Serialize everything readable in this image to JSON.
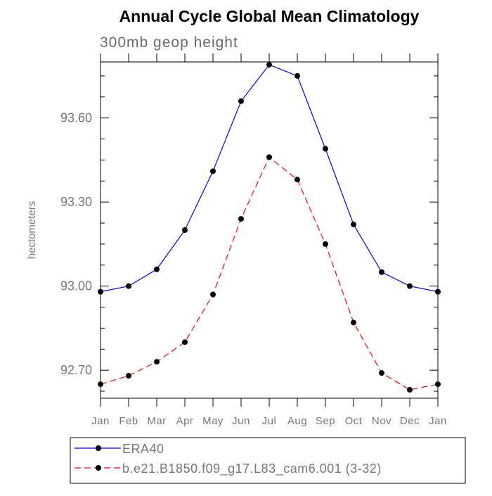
{
  "chart_data": {
    "type": "line",
    "title": "Annual Cycle Global Mean Climatology",
    "subtitle": "300mb geop height",
    "xlabel": "",
    "ylabel": "hectometers",
    "categories": [
      "Jan",
      "Feb",
      "Mar",
      "Apr",
      "May",
      "Jun",
      "Jul",
      "Aug",
      "Sep",
      "Oct",
      "Nov",
      "Dec",
      "Jan"
    ],
    "ylim": [
      92.6,
      93.8
    ],
    "yticks": [
      92.7,
      93.0,
      93.3,
      93.6
    ],
    "ytick_labels": [
      "92.70",
      "93.00",
      "93.30",
      "93.60"
    ],
    "series": [
      {
        "name": "ERA40",
        "color": "#0000ff",
        "dash": "solid",
        "values": [
          92.98,
          93.0,
          93.06,
          93.2,
          93.41,
          93.66,
          93.79,
          93.75,
          93.49,
          93.22,
          93.05,
          93.0,
          92.98
        ]
      },
      {
        "name": "b.e21.B1850.f09_g17.L83_cam6.001 (3-32)",
        "color": "#ff0000",
        "dash": "dashed",
        "values": [
          92.65,
          92.68,
          92.73,
          92.8,
          92.97,
          93.24,
          93.46,
          93.38,
          93.15,
          92.87,
          92.69,
          92.63,
          92.65
        ]
      }
    ],
    "legend_position": "bottom",
    "grid": false
  }
}
